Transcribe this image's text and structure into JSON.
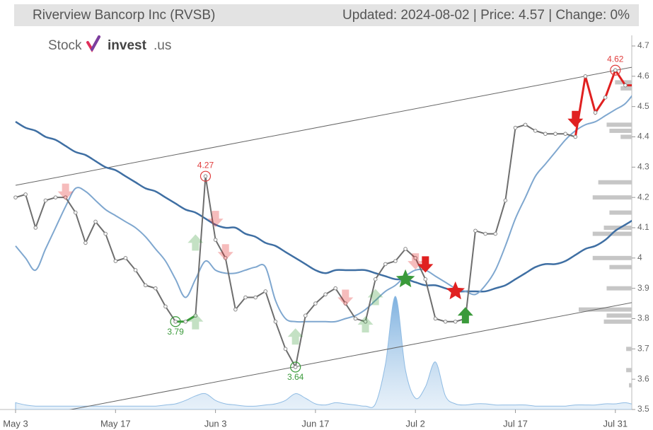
{
  "chart_data": {
    "type": "line",
    "title": "Riverview Bancorp Inc (RVSB)",
    "info": "Updated: 2024-08-02 | Price: 4.57 | Change: 0%",
    "logo": [
      "Stock",
      "invest",
      ".us"
    ],
    "categories": [
      "May 3",
      null,
      null,
      null,
      null,
      null,
      null,
      null,
      null,
      null,
      "May 17",
      null,
      null,
      null,
      null,
      null,
      null,
      null,
      null,
      null,
      "Jun 3",
      null,
      null,
      null,
      null,
      null,
      null,
      null,
      null,
      null,
      "Jun 17",
      null,
      null,
      null,
      null,
      null,
      null,
      null,
      null,
      null,
      "Jul 2",
      null,
      null,
      null,
      null,
      null,
      null,
      null,
      null,
      null,
      "Jul 17",
      null,
      null,
      null,
      null,
      null,
      null,
      null,
      null,
      null,
      "Jul 31",
      null,
      null
    ],
    "series": [
      {
        "color": "#3f6fa3",
        "values": [
          4.45,
          4.43,
          4.42,
          4.4,
          4.39,
          4.37,
          4.35,
          4.34,
          4.32,
          4.3,
          4.29,
          4.27,
          4.25,
          4.23,
          4.22,
          4.2,
          4.18,
          4.16,
          4.15,
          4.13,
          4.11,
          4.1,
          4.1,
          4.08,
          4.07,
          4.05,
          4.04,
          4.02,
          4.0,
          3.98,
          3.96,
          3.95,
          3.96,
          3.96,
          3.96,
          3.96,
          3.95,
          3.94,
          3.93,
          3.93,
          3.92,
          3.91,
          3.91,
          3.9,
          3.89,
          3.89,
          3.89,
          3.89,
          3.9,
          3.91,
          3.93,
          3.95,
          3.97,
          3.98,
          3.98,
          3.99,
          4.01,
          4.03,
          4.04,
          4.06,
          4.09,
          4.11,
          4.13
        ]
      },
      {
        "color": "#7fa7cf",
        "values": [
          4.04,
          4.0,
          3.96,
          4.03,
          4.1,
          4.17,
          4.23,
          4.22,
          4.19,
          4.16,
          4.14,
          4.12,
          4.1,
          4.07,
          4.03,
          3.99,
          3.93,
          3.87,
          3.93,
          3.99,
          3.96,
          3.95,
          3.95,
          3.96,
          3.97,
          3.97,
          3.86,
          3.8,
          3.79,
          3.79,
          3.79,
          3.79,
          3.79,
          3.8,
          3.81,
          3.83,
          3.86,
          3.89,
          3.91,
          3.94,
          3.96,
          3.96,
          3.94,
          3.92,
          3.9,
          3.89,
          3.88,
          3.91,
          3.96,
          4.04,
          4.13,
          4.2,
          4.27,
          4.31,
          4.35,
          4.39,
          4.42,
          4.44,
          4.45,
          4.47,
          4.49,
          4.51,
          4.55
        ]
      },
      {
        "color": "#6e6e6e",
        "values": [
          4.2,
          4.21,
          4.1,
          4.19,
          4.2,
          4.2,
          4.15,
          4.05,
          4.12,
          4.08,
          3.99,
          4.0,
          3.96,
          3.91,
          3.9,
          3.84,
          3.79,
          3.79,
          3.81,
          4.27,
          4.06,
          4.0,
          3.83,
          3.87,
          3.87,
          3.89,
          3.79,
          3.7,
          3.64,
          3.81,
          3.85,
          3.88,
          3.9,
          3.85,
          3.8,
          3.79,
          3.93,
          3.98,
          3.99,
          4.03,
          4.0,
          3.93,
          3.8,
          3.79,
          3.79,
          3.8,
          4.09,
          4.08,
          4.08,
          4.19,
          4.43,
          4.44,
          4.42,
          4.41,
          4.41,
          4.41,
          4.4,
          4.6,
          4.48,
          4.53,
          4.62,
          4.57,
          4.57
        ]
      }
    ],
    "highlights": [
      {
        "from": 16,
        "to": 18,
        "color": "#3a9a3a"
      },
      {
        "from": 56,
        "to": 62,
        "color": "#e02020"
      }
    ],
    "annotations": [
      {
        "at": 19,
        "value": 4.27,
        "color": "#e03c3c",
        "position": "above"
      },
      {
        "at": 16,
        "value": 3.79,
        "color": "#3a9a3a",
        "position": "below"
      },
      {
        "at": 28,
        "value": 3.64,
        "color": "#3a9a3a",
        "position": "below"
      },
      {
        "at": 60,
        "value": 4.62,
        "color": "#e03c3c",
        "position": "above"
      }
    ],
    "markers": [
      {
        "at": 5,
        "price": 4.22,
        "kind": "sell-faded"
      },
      {
        "at": 20,
        "price": 4.13,
        "kind": "sell-faded"
      },
      {
        "at": 21,
        "price": 4.02,
        "kind": "sell-faded"
      },
      {
        "at": 33,
        "price": 3.87,
        "kind": "sell-faded"
      },
      {
        "at": 40,
        "price": 3.99,
        "kind": "sell-faded"
      },
      {
        "at": 18,
        "price": 4.05,
        "kind": "buy-faded"
      },
      {
        "at": 18,
        "price": 3.79,
        "kind": "buy-faded"
      },
      {
        "at": 28,
        "price": 3.74,
        "kind": "buy-faded"
      },
      {
        "at": 35,
        "price": 3.78,
        "kind": "buy-faded"
      },
      {
        "at": 36,
        "price": 3.87,
        "kind": "buy-faded"
      },
      {
        "at": 41,
        "price": 3.98,
        "kind": "sell"
      },
      {
        "at": 56,
        "price": 4.46,
        "kind": "sell"
      },
      {
        "at": 45,
        "price": 3.81,
        "kind": "buy"
      },
      {
        "at": 39,
        "price": 3.93,
        "kind": "star-buy"
      },
      {
        "at": 44,
        "price": 3.89,
        "kind": "star-sell"
      }
    ],
    "trendlines": [
      {
        "x": [
          0,
          62
        ],
        "values": [
          4.24,
          4.632
        ]
      },
      {
        "x": [
          0,
          62
        ],
        "values": [
          3.465,
          3.855
        ]
      }
    ],
    "volume": [
      6,
      4,
      3,
      3,
      3,
      3,
      3,
      3,
      3,
      3,
      3,
      3,
      3,
      3,
      3,
      4,
      5,
      8,
      12,
      14,
      8,
      5,
      4,
      3,
      3,
      4,
      5,
      8,
      14,
      10,
      5,
      4,
      6,
      5,
      4,
      3,
      5,
      40,
      100,
      35,
      10,
      20,
      42,
      12,
      5,
      4,
      5,
      5,
      4,
      4,
      4,
      4,
      3,
      3,
      3,
      3,
      4,
      4,
      4,
      5,
      5,
      6,
      4
    ],
    "volume_profile": {
      "prices": [
        4.58,
        4.56,
        4.44,
        4.42,
        4.4,
        4.25,
        4.2,
        4.15,
        4.1,
        4.08,
        4.0,
        3.97,
        3.9,
        3.83,
        3.81,
        3.79,
        3.7,
        3.63,
        3.58
      ],
      "values": [
        30,
        20,
        45,
        40,
        20,
        60,
        70,
        40,
        50,
        70,
        70,
        40,
        45,
        95,
        45,
        50,
        10,
        10,
        5
      ]
    },
    "ylim": [
      3.5,
      4.7
    ],
    "yticks": [
      3.5,
      3.6,
      3.7,
      3.8,
      3.9,
      4.0,
      4.1,
      4.2,
      4.3,
      4.4,
      4.5,
      4.6,
      4.7
    ]
  }
}
